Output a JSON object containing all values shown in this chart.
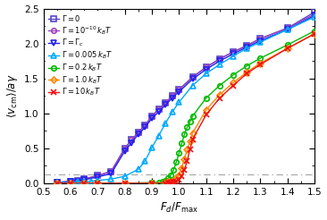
{
  "xlabel": "$F_d / F_\\mathrm{max}$",
  "ylabel": "$\\langle v_\\mathrm{cm}\\rangle / a\\gamma$",
  "xlim": [
    0.5,
    1.5
  ],
  "ylim": [
    0.0,
    2.5
  ],
  "xticks": [
    0.5,
    0.6,
    0.7,
    0.8,
    0.9,
    1.0,
    1.1,
    1.2,
    1.3,
    1.4,
    1.5
  ],
  "yticks": [
    0.0,
    0.5,
    1.0,
    1.5,
    2.0,
    2.5
  ],
  "hline_y": 0.13,
  "hline_color": "#aaaaaa",
  "series": [
    {
      "label": "$\\Gamma = 0$",
      "color": "#5544cc",
      "marker": "s",
      "markersize": 4,
      "markerfacecolor": "none",
      "markeredgewidth": 1.2,
      "x": [
        0.55,
        0.6,
        0.625,
        0.65,
        0.7,
        0.75,
        0.8,
        0.825,
        0.85,
        0.875,
        0.9,
        0.925,
        0.95,
        0.975,
        1.0,
        1.05,
        1.1,
        1.15,
        1.2,
        1.25,
        1.3,
        1.4,
        1.5
      ],
      "y": [
        0.01,
        0.03,
        0.04,
        0.06,
        0.11,
        0.17,
        0.5,
        0.62,
        0.73,
        0.83,
        0.96,
        1.06,
        1.15,
        1.25,
        1.34,
        1.52,
        1.66,
        1.78,
        1.88,
        1.97,
        2.07,
        2.22,
        2.45
      ]
    },
    {
      "label": "$\\Gamma = 10^{-10}\\, k_BT$",
      "color": "#9944bb",
      "marker": "o",
      "markersize": 4,
      "markerfacecolor": "none",
      "markeredgewidth": 1.2,
      "x": [
        0.55,
        0.6,
        0.625,
        0.65,
        0.7,
        0.75,
        0.8,
        0.825,
        0.85,
        0.875,
        0.9,
        0.925,
        0.95,
        0.975,
        1.0,
        1.05,
        1.1,
        1.15,
        1.2,
        1.25,
        1.3,
        1.4,
        1.5
      ],
      "y": [
        0.01,
        0.03,
        0.04,
        0.06,
        0.11,
        0.17,
        0.5,
        0.62,
        0.73,
        0.83,
        0.96,
        1.06,
        1.15,
        1.25,
        1.34,
        1.52,
        1.66,
        1.78,
        1.88,
        1.97,
        2.07,
        2.22,
        2.42
      ]
    },
    {
      "label": "$\\Gamma = \\Gamma_c$",
      "color": "#2222ee",
      "marker": "v",
      "markersize": 4,
      "markerfacecolor": "none",
      "markeredgewidth": 1.2,
      "x": [
        0.55,
        0.6,
        0.625,
        0.65,
        0.7,
        0.75,
        0.8,
        0.825,
        0.85,
        0.875,
        0.9,
        0.925,
        0.95,
        0.975,
        1.0,
        1.05,
        1.1,
        1.15,
        1.2,
        1.25,
        1.3,
        1.4,
        1.5
      ],
      "y": [
        0.01,
        0.02,
        0.03,
        0.05,
        0.09,
        0.14,
        0.46,
        0.58,
        0.7,
        0.8,
        0.93,
        1.02,
        1.12,
        1.22,
        1.31,
        1.49,
        1.63,
        1.75,
        1.85,
        1.95,
        2.04,
        2.2,
        2.4
      ]
    },
    {
      "label": "$\\Gamma = 0.005\\, k_BT$",
      "color": "#00aaff",
      "marker": "^",
      "markersize": 4,
      "markerfacecolor": "none",
      "markeredgewidth": 1.2,
      "x": [
        0.55,
        0.6,
        0.625,
        0.65,
        0.675,
        0.7,
        0.75,
        0.8,
        0.85,
        0.875,
        0.9,
        0.925,
        0.95,
        0.975,
        1.0,
        1.05,
        1.1,
        1.15,
        1.2,
        1.25,
        1.3,
        1.4,
        1.5
      ],
      "y": [
        0.01,
        0.01,
        0.02,
        0.02,
        0.03,
        0.04,
        0.06,
        0.1,
        0.2,
        0.32,
        0.51,
        0.68,
        0.86,
        1.02,
        1.16,
        1.4,
        1.57,
        1.7,
        1.82,
        1.93,
        2.02,
        2.2,
        2.38
      ]
    },
    {
      "label": "$\\Gamma = 0.2\\, k_BT$",
      "color": "#00bb00",
      "marker": "o",
      "markersize": 4,
      "markerfacecolor": "none",
      "markeredgewidth": 1.2,
      "x": [
        0.55,
        0.6,
        0.65,
        0.7,
        0.8,
        0.9,
        0.925,
        0.94,
        0.95,
        0.96,
        0.97,
        0.98,
        0.99,
        1.0,
        1.01,
        1.02,
        1.03,
        1.04,
        1.05,
        1.1,
        1.15,
        1.2,
        1.25,
        1.3,
        1.4,
        1.5
      ],
      "y": [
        0.0,
        0.0,
        0.0,
        0.0,
        0.0,
        0.01,
        0.01,
        0.02,
        0.04,
        0.07,
        0.12,
        0.19,
        0.3,
        0.43,
        0.57,
        0.7,
        0.8,
        0.88,
        0.96,
        1.22,
        1.4,
        1.55,
        1.68,
        1.79,
        1.98,
        2.18
      ]
    },
    {
      "label": "$\\Gamma = 1.0\\, k_BT$",
      "color": "#ff8800",
      "marker": "D",
      "markersize": 3.5,
      "markerfacecolor": "none",
      "markeredgewidth": 1.2,
      "x": [
        0.55,
        0.6,
        0.65,
        0.7,
        0.8,
        0.9,
        0.95,
        0.96,
        0.97,
        0.98,
        0.99,
        1.0,
        1.01,
        1.02,
        1.03,
        1.04,
        1.05,
        1.1,
        1.15,
        1.2,
        1.25,
        1.3,
        1.4,
        1.5
      ],
      "y": [
        0.0,
        0.0,
        0.0,
        0.0,
        0.0,
        0.0,
        0.01,
        0.02,
        0.03,
        0.04,
        0.07,
        0.12,
        0.22,
        0.35,
        0.48,
        0.6,
        0.72,
        1.05,
        1.27,
        1.44,
        1.59,
        1.72,
        1.93,
        2.14
      ]
    },
    {
      "label": "$\\Gamma = 10\\, k_BT$",
      "color": "#ee1111",
      "marker": "x",
      "markersize": 4,
      "markeredgewidth": 1.2,
      "x": [
        0.55,
        0.6,
        0.65,
        0.7,
        0.8,
        0.9,
        0.95,
        0.96,
        0.97,
        0.98,
        0.99,
        1.0,
        1.01,
        1.02,
        1.03,
        1.04,
        1.05,
        1.1,
        1.15,
        1.2,
        1.25,
        1.3,
        1.4,
        1.5
      ],
      "y": [
        0.0,
        0.0,
        0.0,
        0.0,
        0.0,
        0.0,
        0.0,
        0.01,
        0.01,
        0.02,
        0.03,
        0.05,
        0.1,
        0.19,
        0.32,
        0.48,
        0.63,
        0.98,
        1.22,
        1.4,
        1.57,
        1.7,
        1.93,
        2.14
      ]
    }
  ]
}
